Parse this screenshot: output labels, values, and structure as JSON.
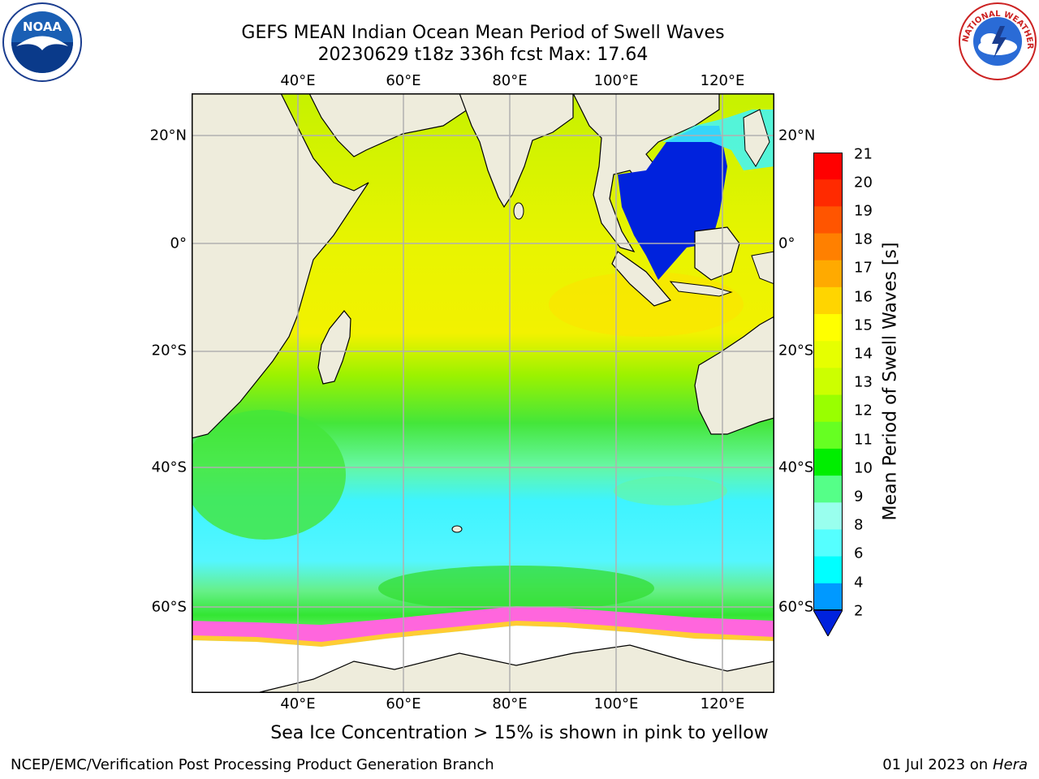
{
  "title": {
    "line1": "GEFS MEAN Indian Ocean Mean Period of Swell Waves",
    "line2": "20230629 t18z 336h fcst   Max: 17.64"
  },
  "map": {
    "lon_ticks": [
      "40°E",
      "60°E",
      "80°E",
      "100°E",
      "120°E"
    ],
    "lat_ticks": [
      "20°N",
      "0°",
      "20°S",
      "40°S",
      "60°S"
    ],
    "colors": {
      "land": "#eeecdc",
      "ice": "#ffffff",
      "grid": "#b0b0b0"
    }
  },
  "colorbar": {
    "label": "Mean Period of Swell Waves [s]",
    "ticks": [
      "21",
      "20",
      "19",
      "18",
      "17",
      "16",
      "15",
      "14",
      "13",
      "12",
      "11",
      "10",
      "9",
      "8",
      "6",
      "4",
      "2"
    ],
    "colors": [
      "#ff0000",
      "#ff2a00",
      "#ff5500",
      "#ff8000",
      "#ffaa00",
      "#ffd500",
      "#ffff00",
      "#e6ff00",
      "#ccff00",
      "#99ff00",
      "#66ff22",
      "#00ee00",
      "#55ff88",
      "#99ffee",
      "#55ffff",
      "#00ffff",
      "#0099ff",
      "#0022dd"
    ]
  },
  "caption": "Sea Ice Concentration > 15% is shown in pink to yellow",
  "footer": {
    "left": "NCEP/EMC/Verification Post Processing Product Generation Branch",
    "right_prefix": "01 Jul 2023 on ",
    "right_italic": "Hera"
  },
  "logos": {
    "noaa_text": "NOAA",
    "nws_text": "NATIONAL WEATHER SERVICE"
  }
}
